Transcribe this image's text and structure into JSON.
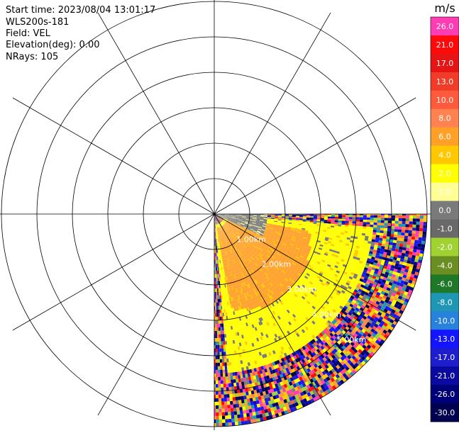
{
  "header": {
    "start_time": "Start time: 2023/08/04 13:01:17",
    "instrument": "WLS200s-181",
    "field": "Field: VEL",
    "elevation": "Elevation(deg): 0.00",
    "nrays": "NRays: 105"
  },
  "chart_data": {
    "type": "heatmap",
    "subtype": "polar-ppi-scan",
    "field": "VEL",
    "unit": "m/s",
    "elevation_deg": 0.0,
    "n_rays": 105,
    "azimuth_range_deg": [
      90,
      180
    ],
    "range_ring_labels": [
      "1.00km",
      "2.00km",
      "3.00km",
      "4.00km",
      "5.00km"
    ],
    "rings_shown": 6,
    "spokes_deg": [
      0,
      30,
      60,
      90,
      120,
      150,
      180,
      210,
      240,
      270,
      300,
      330
    ],
    "colorbar": {
      "unit_label": "m/s",
      "ticks": [
        "26.0",
        "21.0",
        "17.0",
        "13.0",
        "10.0",
        "8.0",
        "6.0",
        "4.0",
        "2.0",
        "1.0",
        "0.0",
        "-1.0",
        "-2.0",
        "-4.0",
        "-6.0",
        "-8.0",
        "-10.0",
        "-13.0",
        "-17.0",
        "-21.0",
        "-26.0",
        "-30.0"
      ],
      "colors": [
        "#ff3cb4",
        "#ff0a0a",
        "#e61414",
        "#f03c28",
        "#ff5a3c",
        "#ff8250",
        "#ffa028",
        "#ffc800",
        "#ffff00",
        "#ffff96",
        "#7a7a7a",
        "#696969",
        "#a0d232",
        "#6b8e23",
        "#1e7828",
        "#1e96b4",
        "#2882dc",
        "#1414ff",
        "#1e1ecc",
        "#0a0aa0",
        "#000078",
        "#000050"
      ]
    },
    "regions": [
      {
        "kind": "near-zero",
        "azimuth_deg": [
          90,
          115
        ],
        "range_km": [
          0.0,
          1.5
        ],
        "value_mps": 0.0
      },
      {
        "kind": "positive-core",
        "azimuth_deg": [
          100,
          170
        ],
        "range_km": [
          0.3,
          3.2
        ],
        "value_mps": 6.0
      },
      {
        "kind": "positive-mid",
        "azimuth_deg": [
          95,
          175
        ],
        "range_km": [
          0.2,
          4.5
        ],
        "value_mps": 4.0
      },
      {
        "kind": "noise",
        "azimuth_deg": [
          90,
          180
        ],
        "range_km": [
          4.5,
          6.0
        ],
        "value_mps": null
      }
    ]
  }
}
